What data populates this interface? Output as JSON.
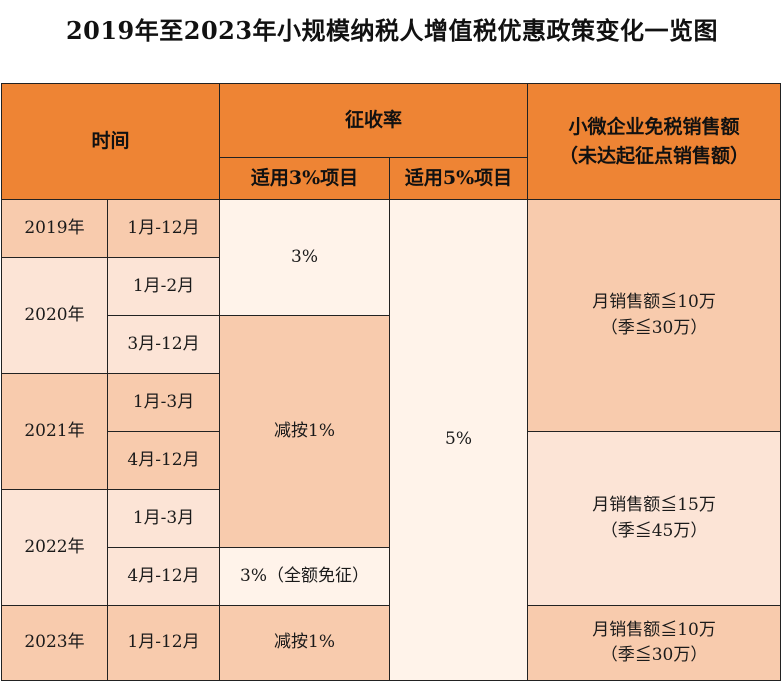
{
  "title": "2019年至2023年小规模纳税人增值税优惠政策变化一览图",
  "header": {
    "time": "时间",
    "rate": "征收率",
    "rate3": "适用3%项目",
    "rate5": "适用5%项目",
    "exempt_line1": "小微企业免税销售额",
    "exempt_line2": "（未达起征点销售额）"
  },
  "years": {
    "y2019": "2019年",
    "y2020": "2020年",
    "y2021": "2021年",
    "y2022": "2022年",
    "y2023": "2023年"
  },
  "periods": {
    "p2019": "1月-12月",
    "p2020a": "1月-2月",
    "p2020b": "3月-12月",
    "p2021a": "1月-3月",
    "p2021b": "4月-12月",
    "p2022a": "1月-3月",
    "p2022b": "4月-12月",
    "p2023": "1月-12月"
  },
  "rates3": {
    "r1": "3%",
    "r2": "减按1%",
    "r3": "3%（全额免征）",
    "r4": "减按1%"
  },
  "rate5": "5%",
  "exempt": {
    "e1_line1": "月销售额≦10万",
    "e1_line2": "（季≦30万）",
    "e2_line1": "月销售额≦15万",
    "e2_line2": "（季≦45万）",
    "e3_line1": "月销售额≦10万",
    "e3_line2": "（季≦30万）"
  }
}
